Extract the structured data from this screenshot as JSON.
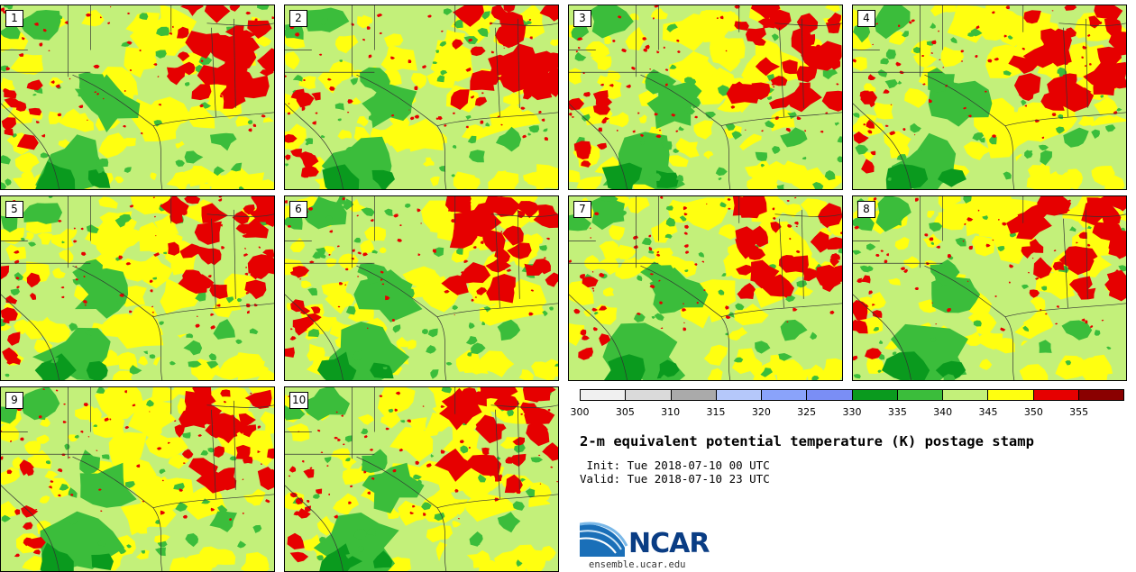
{
  "panels": [
    {
      "label": "1",
      "col": 0,
      "row": 0,
      "seed": 11
    },
    {
      "label": "2",
      "col": 1,
      "row": 0,
      "seed": 23
    },
    {
      "label": "3",
      "col": 2,
      "row": 0,
      "seed": 37
    },
    {
      "label": "4",
      "col": 3,
      "row": 0,
      "seed": 41
    },
    {
      "label": "5",
      "col": 0,
      "row": 1,
      "seed": 53
    },
    {
      "label": "6",
      "col": 1,
      "row": 1,
      "seed": 67
    },
    {
      "label": "7",
      "col": 2,
      "row": 1,
      "seed": 71
    },
    {
      "label": "8",
      "col": 3,
      "row": 1,
      "seed": 83
    },
    {
      "label": "9",
      "col": 0,
      "row": 2,
      "seed": 97
    },
    {
      "label": "10",
      "col": 1,
      "row": 2,
      "seed": 101
    }
  ],
  "colorbar": {
    "colors": [
      "#f0f0f0",
      "#dadada",
      "#aaaaaa",
      "#b5c8fa",
      "#8aa3fa",
      "#7a8ef5",
      "#0a9a1e",
      "#3bbd3b",
      "#c3f07a",
      "#ffff10",
      "#e60000",
      "#8a0000"
    ],
    "ticks": [
      "300",
      "305",
      "310",
      "315",
      "320",
      "325",
      "330",
      "335",
      "340",
      "345",
      "350",
      "355"
    ]
  },
  "title": "2-m equivalent potential temperature (K) postage stamp",
  "init": " Init: Tue 2018-07-10 00 UTC",
  "valid": "Valid: Tue 2018-07-10 23 UTC",
  "logo": {
    "text": "NCAR",
    "url": "ensemble.ucar.edu"
  },
  "map_colors": {
    "dark_green": "#0a9a1e",
    "green": "#3bbd3b",
    "light_green": "#c3f07a",
    "yellow": "#ffff10",
    "red": "#e60000",
    "boundary": "#333333"
  }
}
